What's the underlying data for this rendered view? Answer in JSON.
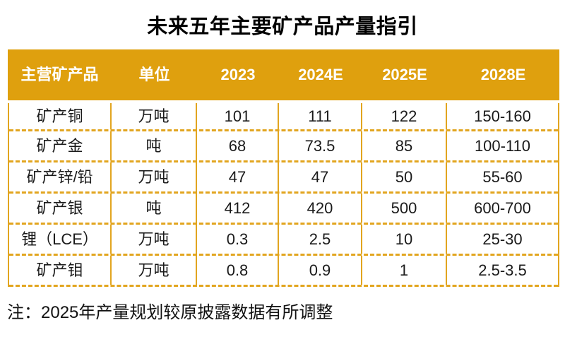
{
  "title": "未来五年主要矿产品产量指引",
  "note": "注：2025年产量规划较原披露数据有所调整",
  "colors": {
    "gold_header_bg": "#DFA00E",
    "gold_border": "#E2A51F",
    "header_text": "#FFFFFF",
    "body_text": "#1A1A1A"
  },
  "table": {
    "columns": [
      "主营矿产品",
      "单位",
      "2023",
      "2024E",
      "2025E",
      "2028E"
    ],
    "rows": [
      [
        "矿产铜",
        "万吨",
        "101",
        "111",
        "122",
        "150-160"
      ],
      [
        "矿产金",
        "吨",
        "68",
        "73.5",
        "85",
        "100-110"
      ],
      [
        "矿产锌/铅",
        "万吨",
        "47",
        "47",
        "50",
        "55-60"
      ],
      [
        "矿产银",
        "吨",
        "412",
        "420",
        "500",
        "600-700"
      ],
      [
        "锂（LCE）",
        "万吨",
        "0.3",
        "2.5",
        "10",
        "25-30"
      ],
      [
        "矿产钼",
        "万吨",
        "0.8",
        "0.9",
        "1",
        "2.5-3.5"
      ]
    ]
  },
  "chart_data": {
    "type": "table",
    "title": "未来五年主要矿产品产量指引",
    "columns": [
      "主营矿产品",
      "单位",
      "2023",
      "2024E",
      "2025E",
      "2028E"
    ],
    "rows": [
      {
        "product": "矿产铜",
        "unit": "万吨",
        "y2023": 101,
        "y2024e": 111,
        "y2025e": 122,
        "y2028e": "150-160"
      },
      {
        "product": "矿产金",
        "unit": "吨",
        "y2023": 68,
        "y2024e": 73.5,
        "y2025e": 85,
        "y2028e": "100-110"
      },
      {
        "product": "矿产锌/铅",
        "unit": "万吨",
        "y2023": 47,
        "y2024e": 47,
        "y2025e": 50,
        "y2028e": "55-60"
      },
      {
        "product": "矿产银",
        "unit": "吨",
        "y2023": 412,
        "y2024e": 420,
        "y2025e": 500,
        "y2028e": "600-700"
      },
      {
        "product": "锂（LCE）",
        "unit": "万吨",
        "y2023": 0.3,
        "y2024e": 2.5,
        "y2025e": 10,
        "y2028e": "25-30"
      },
      {
        "product": "矿产钼",
        "unit": "万吨",
        "y2023": 0.8,
        "y2024e": 0.9,
        "y2025e": 1,
        "y2028e": "2.5-3.5"
      }
    ],
    "note": "注：2025年产量规划较原披露数据有所调整"
  }
}
